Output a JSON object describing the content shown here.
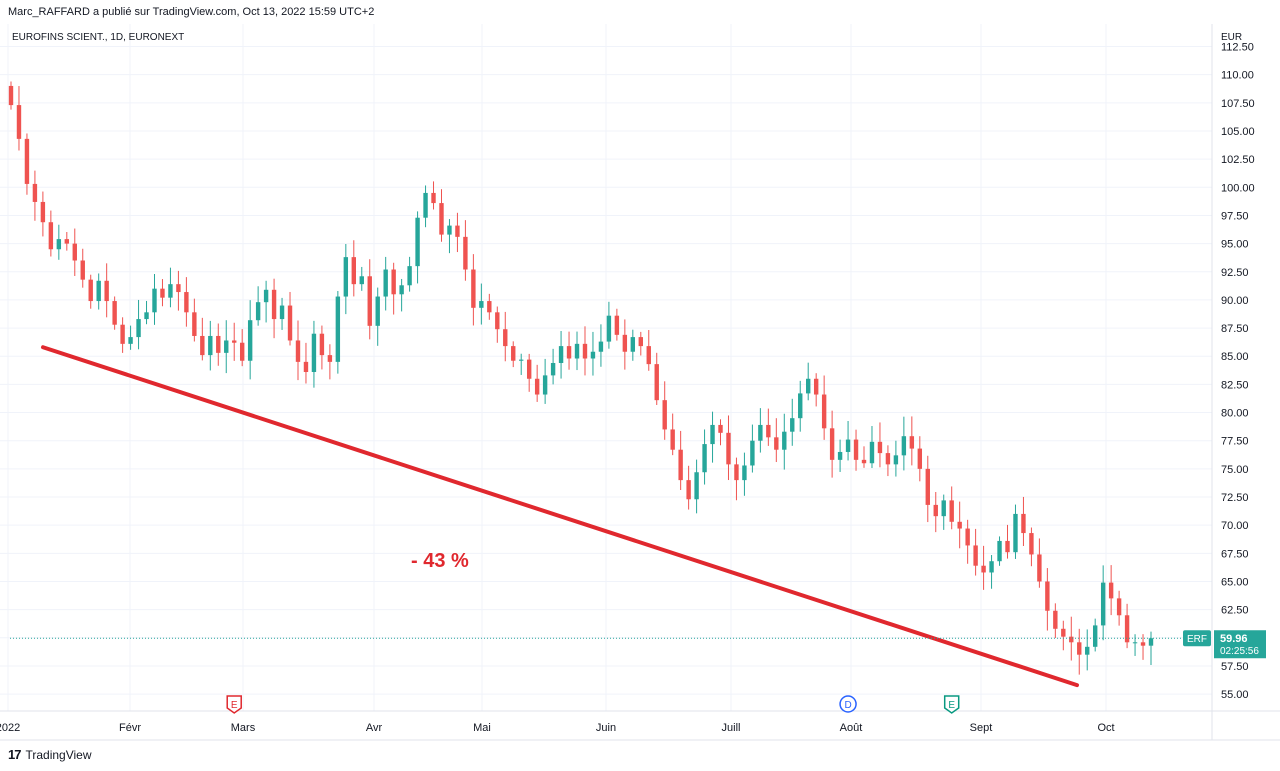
{
  "header": {
    "attribution": "Marc_RAFFARD a publié sur TradingView.com, Oct 13, 2022 15:59 UTC+2"
  },
  "branding": {
    "logo_text": "TradingView",
    "logo_icon": "tradingview-logo-icon"
  },
  "chart_data": {
    "type": "candlestick",
    "title": "EUROFINS SCIENT., 1D, EURONEXT",
    "currency": "EUR",
    "ylim": [
      53.5,
      114.5
    ],
    "y_ticks": [
      "112.50",
      "110.00",
      "107.50",
      "105.00",
      "102.50",
      "100.00",
      "97.50",
      "95.00",
      "92.50",
      "90.00",
      "87.50",
      "85.00",
      "82.50",
      "80.00",
      "77.50",
      "75.00",
      "72.50",
      "70.00",
      "67.50",
      "65.00",
      "62.50",
      "60.00",
      "57.50",
      "55.00"
    ],
    "x_ticks": [
      "2022",
      "Févr",
      "Mars",
      "Avr",
      "Mai",
      "Juin",
      "Juill",
      "Août",
      "Sept",
      "Oct"
    ],
    "grid": true,
    "up_color": "#26a69a",
    "down_color": "#ef5350",
    "series_name": "ERF",
    "last_price": "59.96",
    "countdown": "02:25:56",
    "candles_close": [
      107.3,
      104.3,
      100.3,
      98.7,
      96.9,
      94.5,
      95.4,
      95.0,
      93.5,
      91.8,
      89.9,
      91.7,
      89.9,
      87.8,
      86.1,
      86.7,
      88.3,
      88.9,
      91.0,
      90.2,
      91.4,
      90.7,
      88.9,
      86.8,
      85.1,
      86.8,
      85.3,
      86.4,
      86.2,
      84.6,
      88.2,
      89.8,
      90.9,
      88.3,
      89.5,
      86.4,
      84.5,
      83.6,
      87.0,
      85.1,
      84.5,
      90.3,
      93.8,
      91.4,
      92.1,
      87.7,
      90.3,
      92.7,
      90.5,
      91.3,
      93.0,
      97.3,
      99.5,
      98.6,
      95.8,
      96.6,
      95.6,
      92.7,
      89.3,
      89.9,
      88.9,
      87.4,
      85.9,
      84.6,
      84.7,
      83.0,
      81.6,
      83.3,
      84.4,
      85.9,
      84.8,
      86.1,
      84.8,
      85.4,
      86.3,
      88.6,
      86.9,
      85.4,
      86.7,
      85.9,
      84.3,
      81.1,
      78.5,
      76.7,
      74.0,
      72.3,
      74.7,
      77.2,
      78.9,
      78.2,
      75.4,
      74.0,
      75.3,
      77.5,
      78.9,
      77.8,
      76.7,
      78.3,
      79.5,
      81.7,
      83.0,
      81.6,
      78.6,
      75.8,
      76.5,
      77.6,
      75.8,
      75.5,
      77.4,
      76.4,
      75.4,
      76.2,
      77.9,
      76.8,
      75.0,
      71.8,
      70.8,
      72.2,
      70.3,
      69.7,
      68.2,
      66.4,
      65.8,
      66.8,
      68.6,
      67.6,
      71.0,
      69.3,
      67.4,
      65.0,
      62.4,
      60.8,
      60.1,
      59.6,
      58.5,
      59.2,
      61.1,
      64.9,
      63.5,
      62.0,
      59.6,
      59.6,
      59.3,
      59.96
    ],
    "trendline": {
      "from": {
        "date": "2022-01-10",
        "value": 85.8
      },
      "to": {
        "date": "2022-09-26",
        "value": 55.8
      },
      "color": "#e0282e"
    },
    "annotation": {
      "text": "- 43 %",
      "color": "#e0282e"
    },
    "event_markers": [
      {
        "letter": "E",
        "kind": "earnings",
        "color": "#e0282e",
        "tick_index": 28
      },
      {
        "letter": "D",
        "kind": "dividend",
        "color": "#2962ff",
        "tick_index": 105
      },
      {
        "letter": "E",
        "kind": "earnings",
        "color": "#089981",
        "tick_index": 118
      }
    ]
  }
}
